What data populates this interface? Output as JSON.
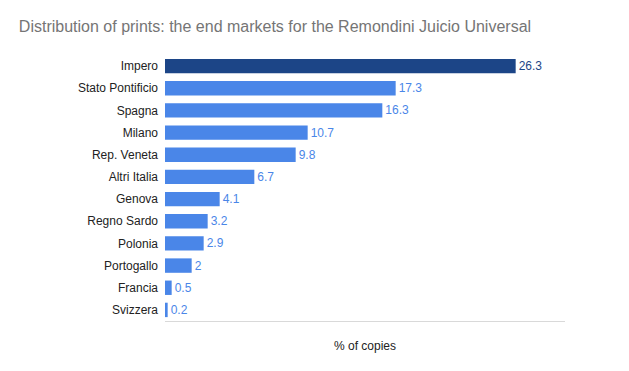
{
  "chart_data": {
    "type": "bar",
    "orientation": "horizontal",
    "title": "Distribution of prints: the end markets for the Remondini Juicio Universal",
    "x_label": "% of copies",
    "categories": [
      "Impero",
      "Stato Pontificio",
      "Spagna",
      "Milano",
      "Rep. Veneta",
      "Altri Italia",
      "Genova",
      "Regno Sardo",
      "Polonia",
      "Portogallo",
      "Francia",
      "Svizzera"
    ],
    "values": [
      26.3,
      17.3,
      16.3,
      10.7,
      9.8,
      6.7,
      4.1,
      3.2,
      2.9,
      2,
      0.5,
      0.2
    ],
    "colors": [
      "#1c4587",
      "#4a86e8",
      "#4a86e8",
      "#4a86e8",
      "#4a86e8",
      "#4a86e8",
      "#4a86e8",
      "#4a86e8",
      "#4a86e8",
      "#4a86e8",
      "#4a86e8",
      "#4a86e8"
    ],
    "xlim": [
      0,
      30
    ],
    "data_labels": true,
    "tick_labels": "y",
    "grid": false
  }
}
